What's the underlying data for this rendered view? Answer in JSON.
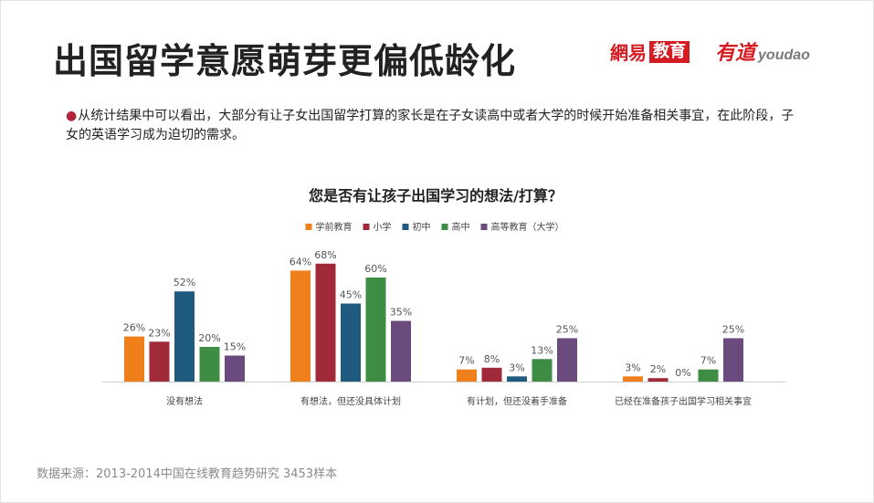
{
  "header": {
    "title": "出国留学意愿萌芽更偏低龄化",
    "logo_netease_a": "網易",
    "logo_netease_b": "教育",
    "logo_youdao_cn": "有道",
    "logo_youdao_en": "youdao"
  },
  "description": {
    "bullet": "●",
    "text": "从统计结果中可以看出，大部分有让子女出国留学打算的家长是在子女读高中或者大学的时候开始准备相关事宜，在此阶段，子女的英语学习成为迫切的需求。"
  },
  "footer": {
    "source": "数据来源：2013-2014中国在线教育趋势研究  3453样本"
  },
  "chart_data": {
    "type": "bar",
    "title": "您是否有让孩子出国学习的想法/打算？",
    "categories": [
      "没有想法",
      "有想法，但还没具体计划",
      "有计划，但还没着手准备",
      "已经在准备孩子出国学习相关事宜"
    ],
    "series": [
      {
        "name": "学前教育",
        "color": "#ef7f1a",
        "values": [
          26,
          64,
          7,
          3
        ]
      },
      {
        "name": "小学",
        "color": "#a12a3a",
        "values": [
          23,
          68,
          8,
          2
        ]
      },
      {
        "name": "初中",
        "color": "#1f5b7e",
        "values": [
          52,
          45,
          3,
          0
        ]
      },
      {
        "name": "高中",
        "color": "#3f8c45",
        "values": [
          20,
          60,
          13,
          7
        ]
      },
      {
        "name": "高等教育（大学）",
        "color": "#6a4b7e",
        "values": [
          15,
          35,
          25,
          25
        ]
      }
    ],
    "value_suffix": "%",
    "ylim": [
      0,
      80
    ],
    "grid": false,
    "legend_position": "top-center",
    "xlabel": "",
    "ylabel": ""
  }
}
